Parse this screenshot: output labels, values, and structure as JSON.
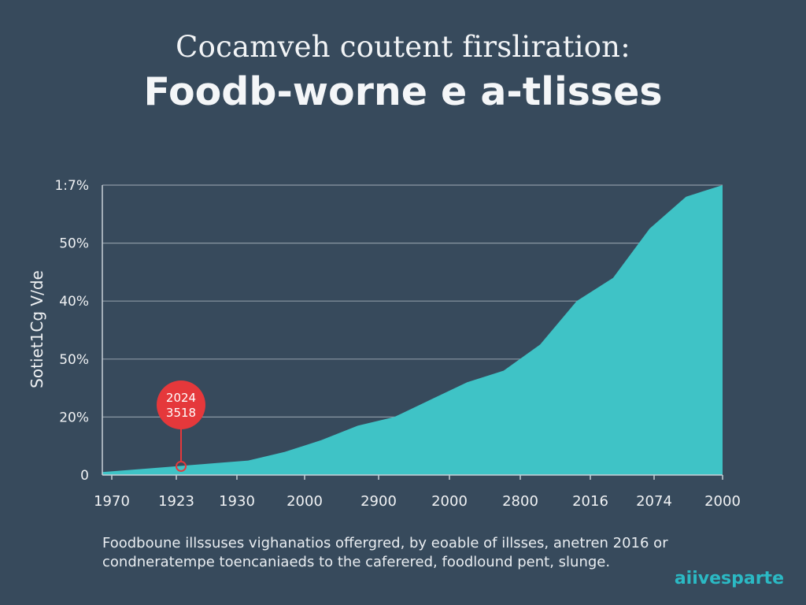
{
  "header": {
    "title_line1": "Cocamveh coutent firsliration:",
    "title_line2": "Foodb-worne e a-tlisses"
  },
  "chart_data": {
    "type": "area",
    "y_label": "Sotiet1Cg V/de",
    "y_tick_labels": [
      "1:7%",
      "50%",
      "40%",
      "50%",
      "20%",
      "0"
    ],
    "x_tick_labels": [
      "1970",
      "1923",
      "1930",
      "2000",
      "2900",
      "2000",
      "2800",
      "2016",
      "2074",
      "2000"
    ],
    "y_range_percent": [
      0,
      100
    ],
    "series": [
      {
        "values_percent": [
          1,
          2,
          3,
          4,
          5,
          8,
          12,
          17,
          20,
          26,
          32,
          36,
          45,
          60,
          68,
          85,
          96,
          100
        ]
      }
    ],
    "annotation": {
      "line1": "2024",
      "line2": "3518",
      "at_x_index": 1,
      "value_percent": 3
    },
    "grid": "horizontal",
    "colors": {
      "area": "#3fc3c6",
      "grid": "#9aa6b1",
      "annotation": "#e5383b",
      "axis": "#c7cfd6"
    }
  },
  "caption": {
    "line1": "Foodboune illssuses vighanatios offergred, by  eoable of illsses, anetren 2016 or",
    "line2": "condneratempe toencaniaeds to the caferered, foodlound pent, slunge."
  },
  "brand": "aiivesparte"
}
